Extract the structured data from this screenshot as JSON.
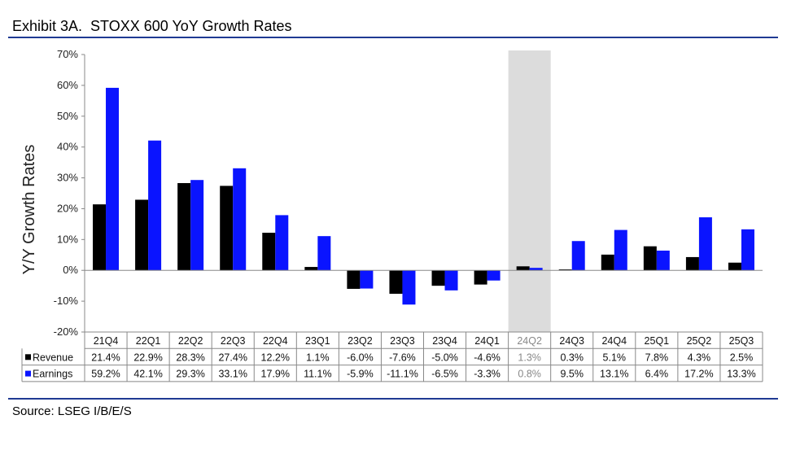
{
  "title": "Exhibit 3A.  STOXX 600 YoY Growth Rates",
  "source": "Source: LSEG I/B/E/S",
  "chart_data": {
    "type": "bar",
    "title": "Exhibit 3A.  STOXX 600 YoY Growth Rates",
    "ylabel": "Y/Y Growth Rates",
    "xlabel": "",
    "ylim": [
      -20,
      70
    ],
    "y_ticks": [
      "70%",
      "60%",
      "50%",
      "40%",
      "30%",
      "20%",
      "10%",
      "0%",
      "-10%",
      "-20%"
    ],
    "y_tick_values": [
      70,
      60,
      50,
      40,
      30,
      20,
      10,
      0,
      -10,
      -20
    ],
    "categories": [
      "21Q4",
      "22Q1",
      "22Q2",
      "22Q3",
      "22Q4",
      "23Q1",
      "23Q2",
      "23Q3",
      "23Q4",
      "24Q1",
      "24Q2",
      "24Q3",
      "24Q4",
      "25Q1",
      "25Q2",
      "25Q3"
    ],
    "highlight_category": "24Q2",
    "series": [
      {
        "name": "Revenue",
        "color": "#000000",
        "values": [
          21.4,
          22.9,
          28.3,
          27.4,
          12.2,
          1.1,
          -6.0,
          -7.6,
          -5.0,
          -4.6,
          1.3,
          0.3,
          5.1,
          7.8,
          4.3,
          2.5
        ],
        "labels": [
          "21.4%",
          "22.9%",
          "28.3%",
          "27.4%",
          "12.2%",
          "1.1%",
          "-6.0%",
          "-7.6%",
          "-5.0%",
          "-4.6%",
          "1.3%",
          "0.3%",
          "5.1%",
          "7.8%",
          "4.3%",
          "2.5%"
        ]
      },
      {
        "name": "Earnings",
        "color": "#0a14ff",
        "values": [
          59.2,
          42.1,
          29.3,
          33.1,
          17.9,
          11.1,
          -5.9,
          -11.1,
          -6.5,
          -3.3,
          0.8,
          9.5,
          13.1,
          6.4,
          17.2,
          13.3
        ],
        "labels": [
          "59.2%",
          "42.1%",
          "29.3%",
          "33.1%",
          "17.9%",
          "11.1%",
          "-5.9%",
          "-11.1%",
          "-6.5%",
          "-3.3%",
          "0.8%",
          "9.5%",
          "13.1%",
          "6.4%",
          "17.2%",
          "13.3%"
        ]
      }
    ],
    "grid": false,
    "legend": "data-table"
  }
}
